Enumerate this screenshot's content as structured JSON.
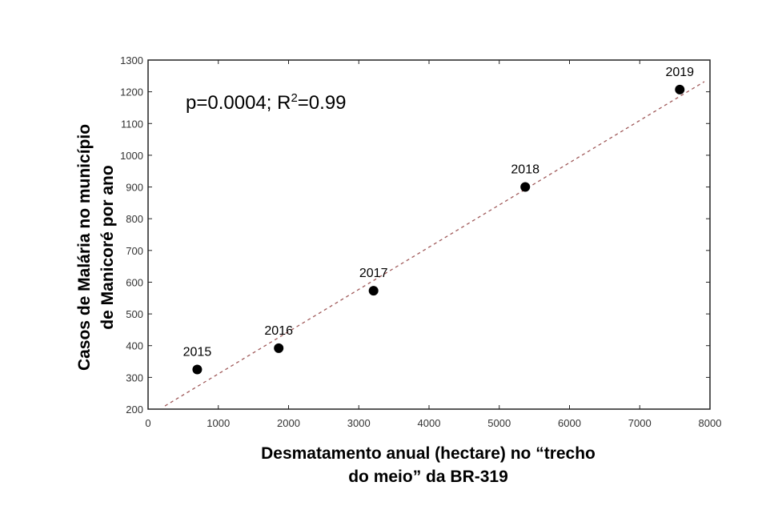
{
  "chart_data": {
    "type": "scatter",
    "title": "",
    "xlabel_lines": [
      "Desmatamento anual (hectare) no “trecho",
      "do meio” da BR-319"
    ],
    "ylabel_lines": [
      "Casos de Malária no município",
      "de Manicoré por ano"
    ],
    "xlim": [
      0,
      8000
    ],
    "ylim": [
      200,
      1300
    ],
    "xticks": [
      0,
      1000,
      2000,
      3000,
      4000,
      5000,
      6000,
      7000,
      8000
    ],
    "yticks": [
      200,
      300,
      400,
      500,
      600,
      700,
      800,
      900,
      1000,
      1100,
      1200,
      1300
    ],
    "grid": false,
    "points": [
      {
        "label": "2015",
        "x": 700,
        "y": 325
      },
      {
        "label": "2016",
        "x": 1860,
        "y": 392
      },
      {
        "label": "2017",
        "x": 3210,
        "y": 573
      },
      {
        "label": "2018",
        "x": 5370,
        "y": 900
      },
      {
        "label": "2019",
        "x": 7570,
        "y": 1207
      }
    ],
    "trendline": {
      "x": [
        240,
        7920
      ],
      "y": [
        210,
        1232
      ],
      "style": "dashed",
      "color": "#a05a5a"
    },
    "annotation": {
      "p": "p=0.0004; R",
      "sup": "2",
      "rest": "=0.99"
    },
    "point_color": "#000000"
  }
}
